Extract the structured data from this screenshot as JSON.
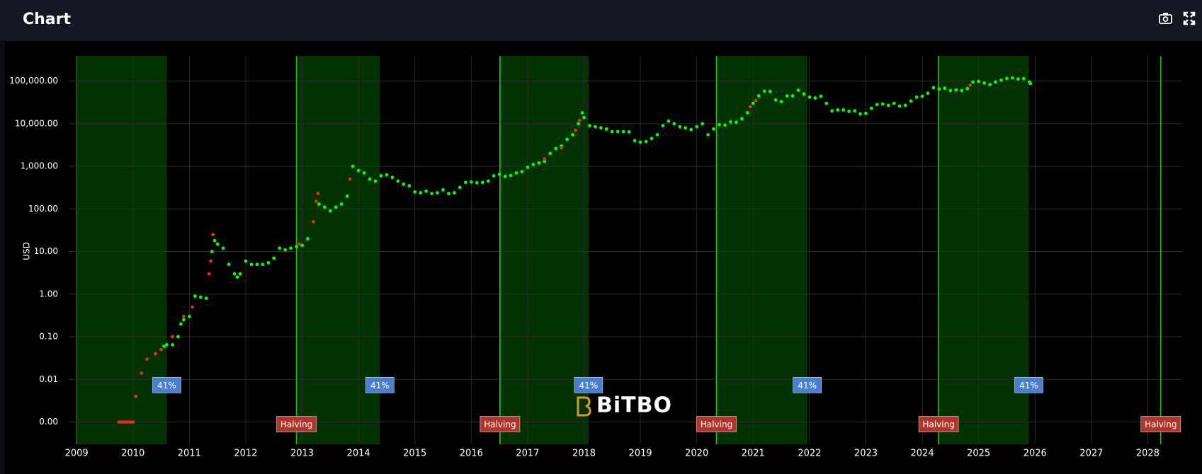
{
  "chart_data": {
    "type": "scatter",
    "title": "Chart",
    "ylabel": "USD",
    "log_y": true,
    "grid": true,
    "xlim": [
      2008.86,
      2028.61
    ],
    "xticks": [
      2009,
      2010,
      2011,
      2012,
      2013,
      2014,
      2015,
      2016,
      2017,
      2018,
      2019,
      2020,
      2021,
      2022,
      2023,
      2024,
      2025,
      2026,
      2027,
      2028
    ],
    "ylim": [
      0.0003,
      390000
    ],
    "yticks": [
      {
        "value": 0.001,
        "label": "0.00"
      },
      {
        "value": 0.01,
        "label": "0.01"
      },
      {
        "value": 0.1,
        "label": "0.10"
      },
      {
        "value": 1,
        "label": "1.00"
      },
      {
        "value": 10,
        "label": "10.00"
      },
      {
        "value": 100,
        "label": "100.00"
      },
      {
        "value": 1000,
        "label": "1,000.00"
      },
      {
        "value": 10000,
        "label": "10,000.00"
      },
      {
        "value": 100000,
        "label": "100,000.00"
      }
    ],
    "series": [
      {
        "color": "#00ff00",
        "x": [
          2010.55,
          2010.6,
          2010.7,
          2010.8,
          2010.85,
          2010.9,
          2011.0,
          2011.1,
          2011.2,
          2011.3,
          2011.4,
          2011.45,
          2011.5,
          2011.6,
          2011.7,
          2011.8,
          2011.85,
          2011.9,
          2012.0,
          2012.1,
          2012.2,
          2012.3,
          2012.4,
          2012.5,
          2012.6,
          2012.7,
          2012.8,
          2012.9,
          2013.0,
          2013.1,
          2013.3,
          2013.4,
          2013.5,
          2013.6,
          2013.7,
          2013.8,
          2013.9,
          2014.0,
          2014.1,
          2014.2,
          2014.3,
          2014.4,
          2014.5,
          2014.6,
          2014.7,
          2014.8,
          2014.9,
          2015.0,
          2015.1,
          2015.2,
          2015.3,
          2015.4,
          2015.5,
          2015.6,
          2015.7,
          2015.8,
          2015.9,
          2016.0,
          2016.1,
          2016.2,
          2016.3,
          2016.4,
          2016.5,
          2016.6,
          2016.7,
          2016.8,
          2016.9,
          2017.0,
          2017.1,
          2017.2,
          2017.3,
          2017.4,
          2017.5,
          2017.6,
          2017.7,
          2017.8,
          2017.9,
          2017.97,
          2018.0,
          2018.1,
          2018.2,
          2018.3,
          2018.4,
          2018.5,
          2018.6,
          2018.7,
          2018.8,
          2018.9,
          2019.0,
          2019.1,
          2019.2,
          2019.3,
          2019.4,
          2019.5,
          2019.6,
          2019.7,
          2019.8,
          2019.9,
          2020.0,
          2020.1,
          2020.2,
          2020.3,
          2020.4,
          2020.5,
          2020.6,
          2020.7,
          2020.8,
          2020.9,
          2021.0,
          2021.1,
          2021.2,
          2021.3,
          2021.4,
          2021.5,
          2021.6,
          2021.7,
          2021.8,
          2021.9,
          2022.0,
          2022.1,
          2022.2,
          2022.3,
          2022.4,
          2022.5,
          2022.6,
          2022.7,
          2022.8,
          2022.9,
          2023.0,
          2023.1,
          2023.2,
          2023.3,
          2023.4,
          2023.5,
          2023.6,
          2023.7,
          2023.8,
          2023.9,
          2024.0,
          2024.1,
          2024.2,
          2024.3,
          2024.4,
          2024.5,
          2024.6,
          2024.7,
          2024.8,
          2024.9,
          2025.0,
          2025.1,
          2025.2,
          2025.3,
          2025.4,
          2025.5,
          2025.6,
          2025.7,
          2025.8,
          2025.9,
          2025.92
        ],
        "values": [
          0.06,
          0.065,
          0.065,
          0.1,
          0.2,
          0.25,
          0.3,
          0.9,
          0.85,
          0.8,
          10,
          18,
          15,
          12,
          5,
          3,
          2.5,
          3,
          6,
          5,
          5,
          5,
          5.5,
          7,
          12,
          11,
          12,
          13,
          14,
          20,
          130,
          110,
          90,
          110,
          130,
          200,
          1000,
          800,
          700,
          500,
          450,
          600,
          630,
          550,
          450,
          380,
          350,
          250,
          240,
          260,
          230,
          240,
          280,
          230,
          240,
          320,
          420,
          430,
          410,
          420,
          450,
          600,
          650,
          580,
          610,
          700,
          750,
          950,
          1100,
          1200,
          1300,
          2000,
          2600,
          3000,
          4300,
          5500,
          10000,
          18000,
          14000,
          9000,
          8500,
          8000,
          7500,
          6500,
          6500,
          6500,
          6400,
          4000,
          3700,
          3800,
          4500,
          5500,
          9000,
          11500,
          10000,
          8500,
          8000,
          7300,
          8500,
          10000,
          5500,
          7500,
          9500,
          9300,
          11000,
          10800,
          13000,
          18000,
          30000,
          45000,
          58000,
          57000,
          36000,
          33000,
          45000,
          45000,
          61000,
          50000,
          42000,
          40000,
          44000,
          30000,
          20000,
          21000,
          21000,
          19500,
          20000,
          17000,
          17500,
          23000,
          28000,
          29000,
          27000,
          30000,
          26000,
          27000,
          34000,
          42000,
          44000,
          52000,
          70000,
          65000,
          68000,
          60000,
          62000,
          60000,
          67000,
          95000,
          98000,
          90000,
          83000,
          95000,
          105000,
          115000,
          118000,
          112000,
          114000,
          95000,
          88000
        ]
      },
      {
        "color": "#e62e12",
        "x": [
          2009.75,
          2009.8,
          2009.85,
          2009.9,
          2009.95,
          2010.0,
          2010.05,
          2010.15,
          2010.25,
          2010.4,
          2010.5,
          2010.7,
          2010.9,
          2011.05,
          2011.35,
          2011.38,
          2011.42,
          2012.95,
          2013.2,
          2013.25,
          2013.28,
          2013.85,
          2017.3,
          2017.6,
          2017.85,
          2017.92,
          2020.95,
          2021.05,
          2024.85
        ],
        "values": [
          0.001,
          0.001,
          0.001,
          0.001,
          0.001,
          0.001,
          0.004,
          0.014,
          0.03,
          0.04,
          0.05,
          0.1,
          0.3,
          0.5,
          3,
          6,
          25,
          15,
          50,
          150,
          230,
          500,
          1500,
          2700,
          7000,
          12000,
          25000,
          35000,
          80000
        ]
      }
    ],
    "regions": [
      {
        "start": 2009.0,
        "end": 2010.6,
        "label": "41%"
      },
      {
        "start": 2012.9,
        "end": 2014.38,
        "label": "41%"
      },
      {
        "start": 2016.51,
        "end": 2018.08,
        "label": "41%"
      },
      {
        "start": 2020.35,
        "end": 2021.96,
        "label": "41%"
      },
      {
        "start": 2024.29,
        "end": 2025.89,
        "label": "41%"
      }
    ],
    "region_label_y": 0.01,
    "region_color": "#023202",
    "halvings": [
      {
        "x": 2012.9,
        "label": "Halving"
      },
      {
        "x": 2016.51,
        "label": "Halving"
      },
      {
        "x": 2020.35,
        "label": "Halving"
      },
      {
        "x": 2024.29,
        "label": "Halving"
      },
      {
        "x": 2028.23,
        "label": "Halving"
      }
    ],
    "halving_label_y": 0.001,
    "halving_line_color": "#1fbf1f",
    "watermark": "BiTBO"
  }
}
